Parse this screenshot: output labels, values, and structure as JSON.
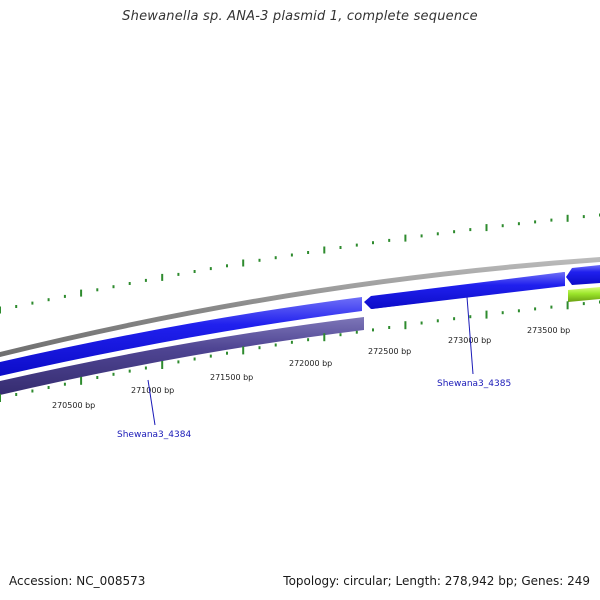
{
  "title": "Shewanella sp. ANA-3 plasmid 1, complete sequence",
  "footer": {
    "accession": "Accession: NC_008573",
    "topology": "Topology: circular; Length: 278,942 bp; Genes: 249"
  },
  "ticks": [
    {
      "label": "270500 bp"
    },
    {
      "label": "271000 bp"
    },
    {
      "label": "271500 bp"
    },
    {
      "label": "272000 bp"
    },
    {
      "label": "272500 bp"
    },
    {
      "label": "273000 bp"
    },
    {
      "label": "273500 bp"
    }
  ],
  "genes": [
    {
      "label": "Shewana3_4384",
      "strand": "+"
    },
    {
      "label": "Shewana3_4385",
      "strand": "-"
    }
  ],
  "colors": {
    "backbone": "#8c8c8c",
    "cds_forward": "#1a1ae6",
    "cds_reverse": "#0d0dd9",
    "rna_track": "#4a3f8f",
    "tick": "#2e8b2e",
    "gene_label": "#1a1ab8",
    "green_feature": "#9be52a"
  }
}
